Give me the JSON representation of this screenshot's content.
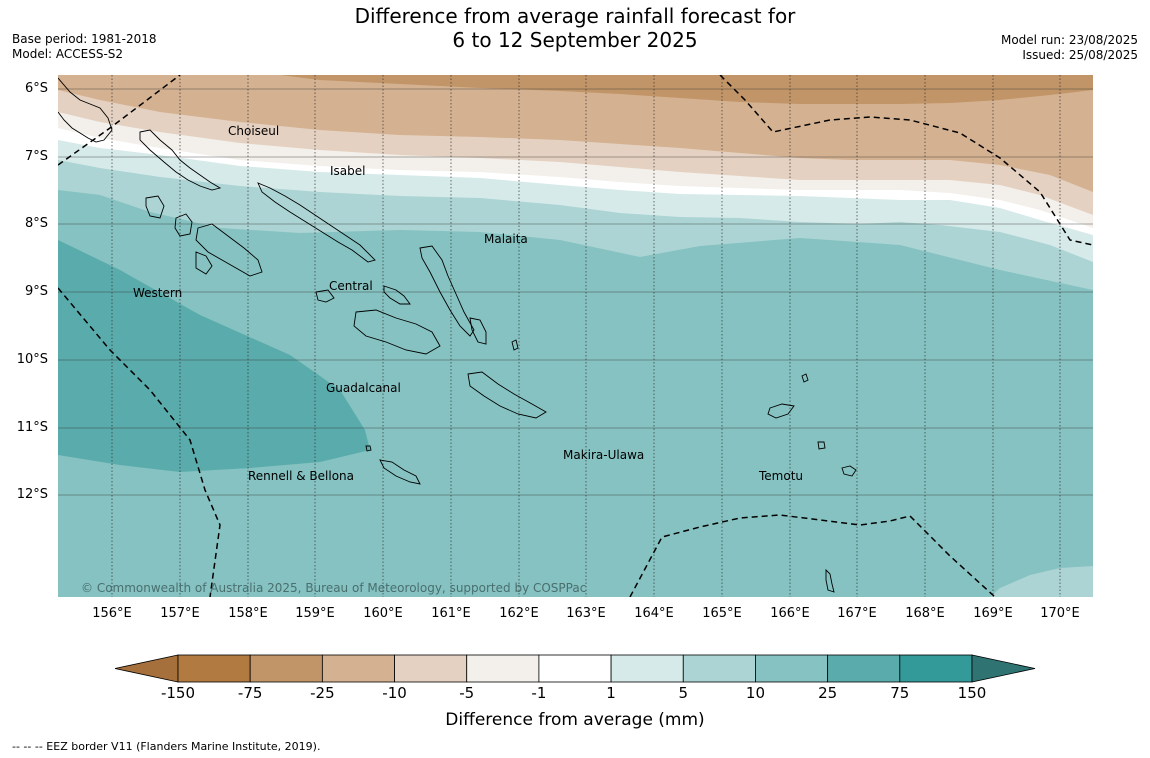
{
  "header": {
    "title_line1": "Difference from average rainfall forecast for",
    "title_line2": "6 to 12 September 2025",
    "base_period": "Base period: 1981-2018",
    "model": "Model: ACCESS-S2",
    "model_run": "Model run: 23/08/2025",
    "issued": "Issued: 25/08/2025"
  },
  "map": {
    "lat_labels": [
      "6°S",
      "7°S",
      "8°S",
      "9°S",
      "10°S",
      "11°S",
      "12°S"
    ],
    "lon_labels": [
      "156°E",
      "157°E",
      "158°E",
      "159°E",
      "160°E",
      "161°E",
      "162°E",
      "163°E",
      "164°E",
      "165°E",
      "166°E",
      "167°E",
      "168°E",
      "169°E",
      "170°E"
    ],
    "places": {
      "choiseul": "Choiseul",
      "isabel": "Isabel",
      "malaita": "Malaita",
      "western": "Western",
      "central": "Central",
      "guadalcanal": "Guadalcanal",
      "makira": "Makira-Ulawa",
      "rennell": "Rennell & Bellona",
      "temotu": "Temotu"
    },
    "copyright": "© Commonwealth of Australia 2025, Bureau of Meteorology, supported by COSPPac"
  },
  "colorbar": {
    "labels": [
      "-150",
      "-75",
      "-25",
      "-10",
      "-5",
      "-1",
      "1",
      "5",
      "10",
      "25",
      "75",
      "150"
    ],
    "colors": [
      "#a5703b",
      "#b07a41",
      "#c19568",
      "#d4b190",
      "#e4d1c1",
      "#f3efea",
      "#ffffff",
      "#d6eae9",
      "#acd4d4",
      "#85c2c1",
      "#5aabab",
      "#339a99",
      "#2f7373"
    ],
    "title": "Difference from average (mm)"
  },
  "footnote": "--  --  -- EEZ border V11 (Flanders Marine Institute, 2019)."
}
